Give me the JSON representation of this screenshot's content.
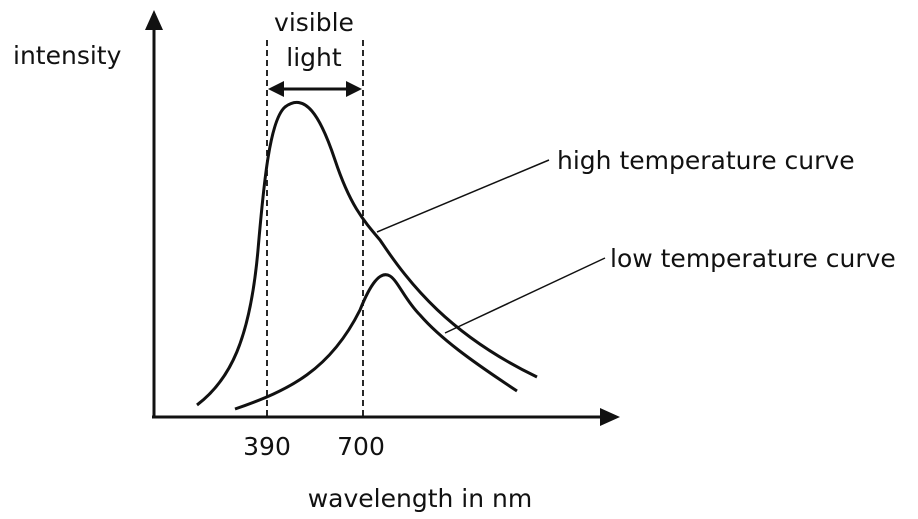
{
  "y_axis_label": "intensity",
  "x_axis_label": "wavelength in nm",
  "band_label_line1": "visible",
  "band_label_line2": "light",
  "tick_left": "390",
  "tick_right": "700",
  "curve_high_label": "high temperature curve",
  "curve_low_label": "low temperature curve",
  "colors": {
    "ink": "#111111",
    "background": "#ffffff"
  }
}
